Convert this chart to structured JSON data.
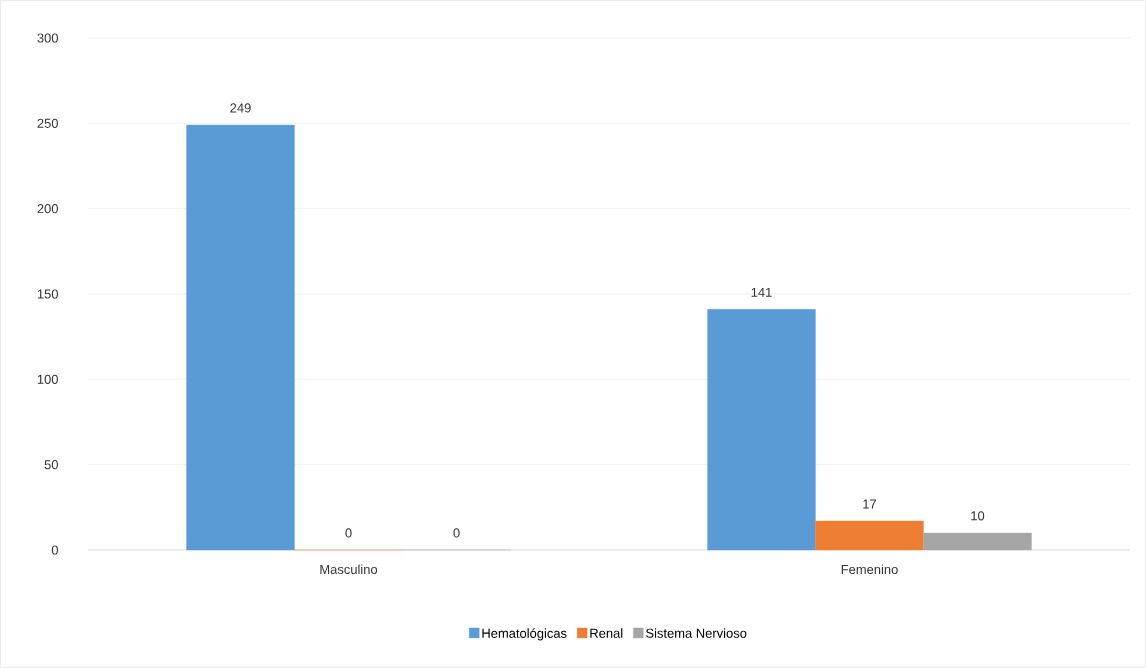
{
  "chart_data": {
    "type": "bar",
    "categories": [
      "Masculino",
      "Femenino"
    ],
    "series": [
      {
        "name": "Hematológicas",
        "color": "#5b9bd5",
        "values": [
          249,
          141
        ]
      },
      {
        "name": "Renal",
        "color": "#ed7d31",
        "values": [
          0,
          17
        ]
      },
      {
        "name": "Sistema Nervioso",
        "color": "#a5a5a5",
        "values": [
          0,
          10
        ]
      }
    ],
    "ylim": [
      0,
      300
    ],
    "yticks": [
      0,
      50,
      100,
      150,
      200,
      250,
      300
    ],
    "grid": "y",
    "legend": "bottom",
    "data_labels": true
  }
}
